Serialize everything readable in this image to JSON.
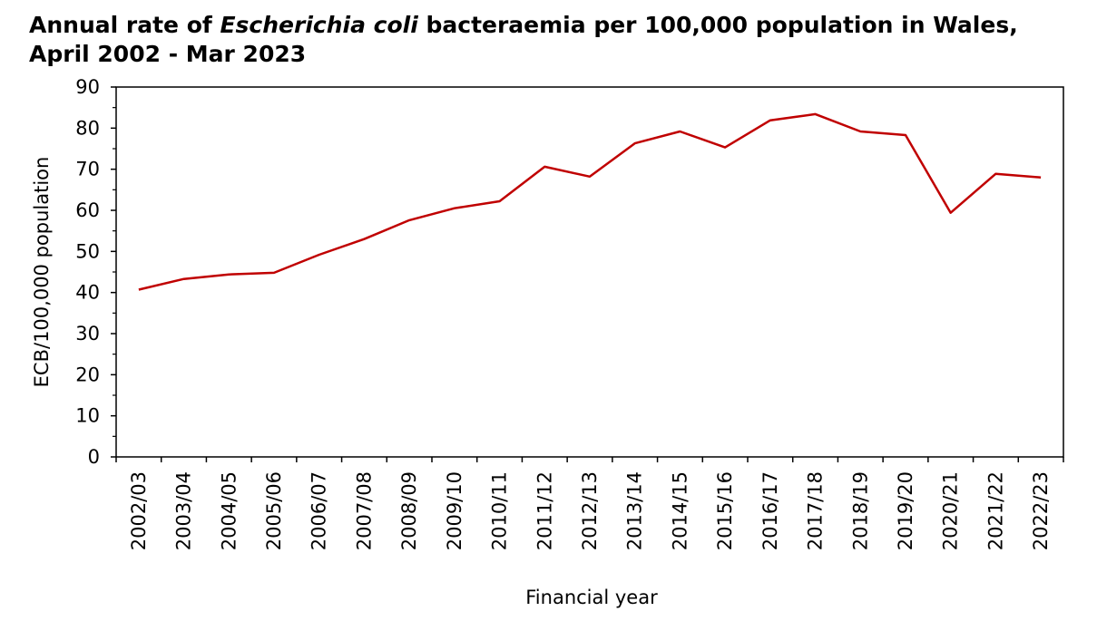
{
  "chart_data": {
    "type": "line",
    "title": {
      "line1_before": "Annual rate of ",
      "line1_italic": "Escherichia coli",
      "line1_after": " bacteraemia per 100,000 population in Wales,",
      "line2": "April 2002 - Mar 2023"
    },
    "xlabel": "Financial year",
    "ylabel": "ECB/100,000 population",
    "ylim": [
      0,
      90
    ],
    "yticks": [
      0,
      10,
      20,
      30,
      40,
      50,
      60,
      70,
      80,
      90
    ],
    "grid": false,
    "categories": [
      "2002/03",
      "2003/04",
      "2004/05",
      "2005/06",
      "2006/07",
      "2007/08",
      "2008/09",
      "2009/10",
      "2010/11",
      "2011/12",
      "2012/13",
      "2013/14",
      "2014/15",
      "2015/16",
      "2016/17",
      "2017/18",
      "2018/19",
      "2019/20",
      "2020/21",
      "2021/22",
      "2022/23"
    ],
    "series": [
      {
        "values": [
          40.7,
          43.3,
          44.4,
          44.8,
          49.2,
          53.0,
          57.6,
          60.5,
          62.2,
          70.6,
          68.2,
          76.3,
          79.2,
          75.3,
          81.9,
          83.4,
          79.2,
          78.3,
          59.4,
          68.9,
          68.0
        ],
        "color": "#c00000"
      }
    ]
  }
}
